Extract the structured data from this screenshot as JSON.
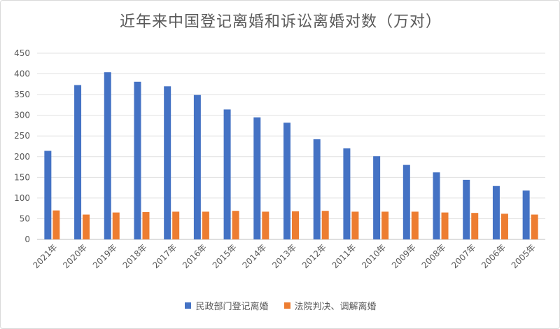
{
  "chart_data": {
    "type": "bar",
    "title": "近年来中国登记离婚和诉讼离婚对数（万对）",
    "categories": [
      "2021年",
      "2020年",
      "2019年",
      "2018年",
      "2017年",
      "2016年",
      "2015年",
      "2014年",
      "2013年",
      "2012年",
      "2011年",
      "2010年",
      "2009年",
      "2008年",
      "2007年",
      "2006年",
      "2005年"
    ],
    "series": [
      {
        "name": "民政部门登记离婚",
        "color": "#4472C4",
        "values": [
          214,
          373,
          404,
          381,
          370,
          349,
          314,
          295,
          282,
          242,
          220,
          201,
          180,
          162,
          144,
          129,
          118
        ]
      },
      {
        "name": "法院判决、调解离婚",
        "color": "#ED7D31",
        "values": [
          70,
          60,
          65,
          66,
          67,
          67,
          69,
          67,
          68,
          69,
          67,
          67,
          67,
          65,
          64,
          62,
          60
        ]
      }
    ],
    "ylim": [
      0,
      450
    ],
    "yticks": [
      0,
      50,
      100,
      150,
      200,
      250,
      300,
      350,
      400,
      450
    ],
    "grid": true,
    "legend": "bottom"
  }
}
